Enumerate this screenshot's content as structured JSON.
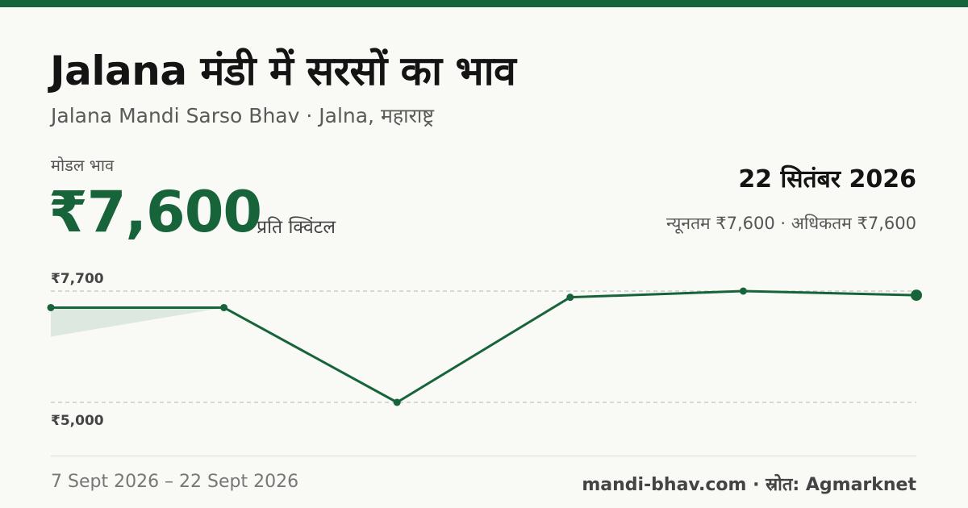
{
  "header": {
    "title": "Jalana मंडी में सरसों का भाव",
    "subtitle": "Jalana Mandi Sarso Bhav · Jalna, महाराष्ट्र"
  },
  "price": {
    "label": "मोडल भाव",
    "value": "₹7,600",
    "unit": "प्रति क्विंटल"
  },
  "summary": {
    "date": "22 सितंबर 2026",
    "min_max": "न्यूनतम ₹7,600 · अधिकतम ₹7,600"
  },
  "footer": {
    "date_range": "7 Sept 2026 – 22 Sept 2026",
    "source": "mandi-bhav.com · स्रोत: Agmarknet"
  },
  "colors": {
    "accent": "#17643a",
    "area_fill": "#dce8e0",
    "gridline": "#b8b8b0"
  },
  "chart_data": {
    "type": "line",
    "y_ticks": [
      {
        "value": 7700,
        "label": "₹7,700"
      },
      {
        "value": 5000,
        "label": "₹5,000"
      }
    ],
    "ylim": [
      5000,
      7700
    ],
    "values": [
      7300,
      7300,
      5000,
      7550,
      7700,
      7600
    ],
    "highlight_last": true,
    "grid": "dashed",
    "xlabel": "",
    "ylabel": ""
  }
}
